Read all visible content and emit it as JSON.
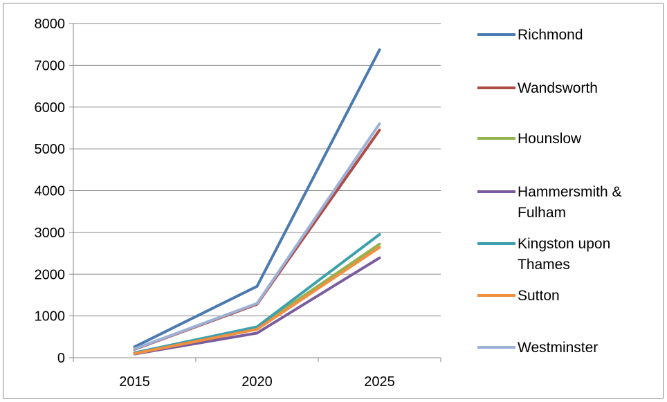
{
  "chart_data": {
    "type": "line",
    "title": "",
    "xlabel": "",
    "ylabel": "",
    "x": [
      "2015",
      "2020",
      "2025"
    ],
    "ylim": [
      0,
      8000
    ],
    "yticks": [
      "0",
      "1000",
      "2000",
      "3000",
      "4000",
      "5000",
      "6000",
      "7000",
      "8000"
    ],
    "grid": "horizontal",
    "legend_position": "right",
    "series": [
      {
        "name": "Richmond",
        "color": "#4a7ab0",
        "legend_lines": [
          "Richmond"
        ],
        "values": [
          260,
          1710,
          7370
        ]
      },
      {
        "name": "Wandsworth",
        "color": "#b04a45",
        "legend_lines": [
          "Wandsworth"
        ],
        "values": [
          200,
          1280,
          5450
        ]
      },
      {
        "name": "Hounslow",
        "color": "#93b350",
        "legend_lines": [
          "Hounslow"
        ],
        "values": [
          110,
          720,
          2720
        ]
      },
      {
        "name": "Hammersmith & Fulham",
        "color": "#7a5c9e",
        "legend_lines": [
          "Hammersmith &",
          "Fulham"
        ],
        "values": [
          90,
          590,
          2390
        ]
      },
      {
        "name": "Kingston upon Thames",
        "color": "#3ea0ad",
        "legend_lines": [
          "Kingston upon",
          "Thames"
        ],
        "values": [
          120,
          740,
          2950
        ]
      },
      {
        "name": "Sutton",
        "color": "#f09040",
        "legend_lines": [
          "Sutton"
        ],
        "values": [
          100,
          680,
          2640
        ]
      },
      {
        "name": "Westminster",
        "color": "#9cb1d8",
        "legend_lines": [
          "Westminster"
        ],
        "values": [
          210,
          1300,
          5600
        ]
      }
    ]
  }
}
